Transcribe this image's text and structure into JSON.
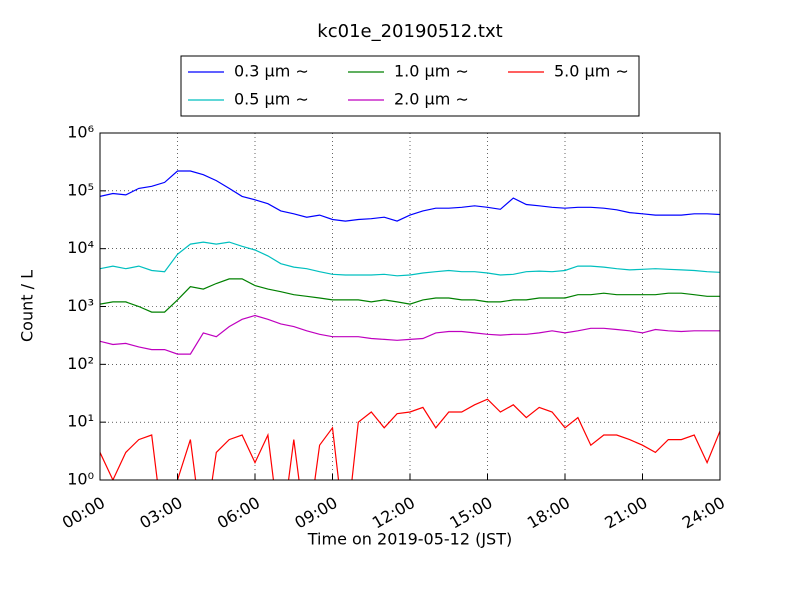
{
  "chart_data": {
    "type": "line",
    "title": "kc01e_20190512.txt",
    "x_label": "Time on 2019-05-12 (JST)",
    "y_label": "Count / L",
    "log_y": true,
    "grid": true,
    "legend": "top",
    "x": [
      0,
      0.5,
      1,
      1.5,
      2,
      2.5,
      3,
      3.5,
      4,
      4.5,
      5,
      5.5,
      6,
      6.5,
      7,
      7.5,
      8,
      8.5,
      9,
      9.5,
      10,
      10.5,
      11,
      11.5,
      12,
      12.5,
      13,
      13.5,
      14,
      14.5,
      15,
      15.5,
      16,
      16.5,
      17,
      17.5,
      18,
      18.5,
      19,
      19.5,
      20,
      20.5,
      21,
      21.5,
      22,
      22.5,
      23,
      23.5,
      24
    ],
    "xlim": [
      0,
      24
    ],
    "xticks": [
      {
        "value": 0,
        "label": "00:00"
      },
      {
        "value": 3,
        "label": "03:00"
      },
      {
        "value": 6,
        "label": "06:00"
      },
      {
        "value": 9,
        "label": "09:00"
      },
      {
        "value": 12,
        "label": "12:00"
      },
      {
        "value": 15,
        "label": "15:00"
      },
      {
        "value": 18,
        "label": "18:00"
      },
      {
        "value": 21,
        "label": "21:00"
      },
      {
        "value": 24,
        "label": "24:00"
      }
    ],
    "ylim": [
      1,
      1000000
    ],
    "yticks": [
      {
        "value": 1,
        "label": "10⁰"
      },
      {
        "value": 10,
        "label": "10¹"
      },
      {
        "value": 100,
        "label": "10²"
      },
      {
        "value": 1000,
        "label": "10³"
      },
      {
        "value": 10000,
        "label": "10⁴"
      },
      {
        "value": 100000,
        "label": "10⁵"
      },
      {
        "value": 1000000,
        "label": "10⁶"
      }
    ],
    "series": [
      {
        "name": "0.3 μm ∼",
        "color": "#0000ff",
        "values": [
          80000,
          90000,
          85000,
          110000,
          120000,
          140000,
          220000,
          220000,
          190000,
          150000,
          110000,
          80000,
          70000,
          60000,
          45000,
          40000,
          35000,
          38000,
          32000,
          30000,
          32000,
          33000,
          35000,
          30000,
          38000,
          45000,
          50000,
          50000,
          52000,
          55000,
          52000,
          48000,
          75000,
          58000,
          55000,
          52000,
          50000,
          52000,
          52000,
          50000,
          47000,
          42000,
          40000,
          38000,
          38000,
          38000,
          40000,
          40000,
          39000
        ]
      },
      {
        "name": "0.5 μm ∼",
        "color": "#00bfbf",
        "values": [
          4500,
          5000,
          4500,
          5000,
          4200,
          4000,
          8000,
          12000,
          13000,
          12000,
          13000,
          11000,
          9500,
          7500,
          5500,
          4800,
          4500,
          4000,
          3600,
          3500,
          3500,
          3500,
          3600,
          3400,
          3500,
          3800,
          4000,
          4200,
          4000,
          4000,
          3800,
          3500,
          3600,
          4000,
          4100,
          4000,
          4200,
          5000,
          5000,
          4800,
          4500,
          4300,
          4400,
          4500,
          4400,
          4300,
          4200,
          4000,
          3900
        ]
      },
      {
        "name": "1.0 μm ∼",
        "color": "#008000",
        "values": [
          1100,
          1200,
          1200,
          1000,
          800,
          800,
          1300,
          2200,
          2000,
          2500,
          3000,
          3000,
          2300,
          2000,
          1800,
          1600,
          1500,
          1400,
          1300,
          1300,
          1300,
          1200,
          1300,
          1200,
          1100,
          1300,
          1400,
          1400,
          1300,
          1300,
          1200,
          1200,
          1300,
          1300,
          1400,
          1400,
          1400,
          1600,
          1600,
          1700,
          1600,
          1600,
          1600,
          1600,
          1700,
          1700,
          1600,
          1500,
          1500
        ]
      },
      {
        "name": "2.0 μm ∼",
        "color": "#bf00bf",
        "values": [
          250,
          220,
          230,
          200,
          180,
          180,
          150,
          150,
          350,
          300,
          450,
          600,
          700,
          600,
          500,
          450,
          380,
          330,
          300,
          300,
          300,
          280,
          270,
          260,
          270,
          280,
          350,
          370,
          370,
          350,
          330,
          320,
          330,
          330,
          350,
          380,
          350,
          380,
          420,
          420,
          400,
          380,
          350,
          400,
          380,
          370,
          380,
          380,
          380
        ]
      },
      {
        "name": "5.0 μm ∼",
        "color": "#ff0000",
        "values": [
          3,
          1,
          3,
          5,
          6,
          0,
          1,
          5,
          0,
          3,
          5,
          6,
          2,
          6,
          0,
          5,
          0,
          4,
          8,
          0,
          10,
          15,
          8,
          14,
          15,
          18,
          8,
          15,
          15,
          20,
          25,
          15,
          20,
          12,
          18,
          15,
          8,
          12,
          4,
          6,
          6,
          5,
          4,
          3,
          5,
          5,
          6,
          2,
          7
        ]
      }
    ]
  }
}
